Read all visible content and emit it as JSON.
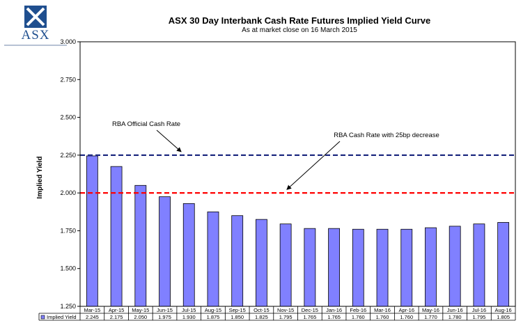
{
  "logo": {
    "text": "ASX"
  },
  "chart_data": {
    "type": "bar",
    "title": "ASX 30 Day Interbank Cash Rate Futures Implied Yield Curve",
    "subtitle": "As at market close on 16 March 2015",
    "ylabel": "Implied Yield",
    "ylim": [
      1.25,
      3.0
    ],
    "yticks": [
      "1.250",
      "1.500",
      "1.750",
      "2.000",
      "2.250",
      "2.500",
      "2.750",
      "3.000"
    ],
    "categories": [
      "Mar-15",
      "Apr-15",
      "May-15",
      "Jun-15",
      "Jul-15",
      "Aug-15",
      "Sep-15",
      "Oct-15",
      "Nov-15",
      "Dec-15",
      "Jan-16",
      "Feb-16",
      "Mar-16",
      "Apr-16",
      "May-16",
      "Jun-16",
      "Jul-16",
      "Aug-16"
    ],
    "series": [
      {
        "name": "Implied Yield",
        "values": [
          2.245,
          2.175,
          2.05,
          1.975,
          1.93,
          1.875,
          1.85,
          1.825,
          1.795,
          1.765,
          1.765,
          1.76,
          1.76,
          1.76,
          1.77,
          1.78,
          1.795,
          1.805
        ],
        "labels": [
          "2.245",
          "2.175",
          "2.050",
          "1.975",
          "1.930",
          "1.875",
          "1.850",
          "1.825",
          "1.795",
          "1.765",
          "1.765",
          "1.760",
          "1.760",
          "1.760",
          "1.770",
          "1.780",
          "1.795",
          "1.805"
        ],
        "color": "#8080ff"
      }
    ],
    "reference_lines": [
      {
        "value": 2.25,
        "color": "#1f2a80",
        "label": "RBA Official Cash Rate"
      },
      {
        "value": 2.0,
        "color": "#ff0000",
        "label": "RBA Cash Rate with 25bp decrease"
      }
    ],
    "grid": false,
    "legend": "data-table"
  }
}
